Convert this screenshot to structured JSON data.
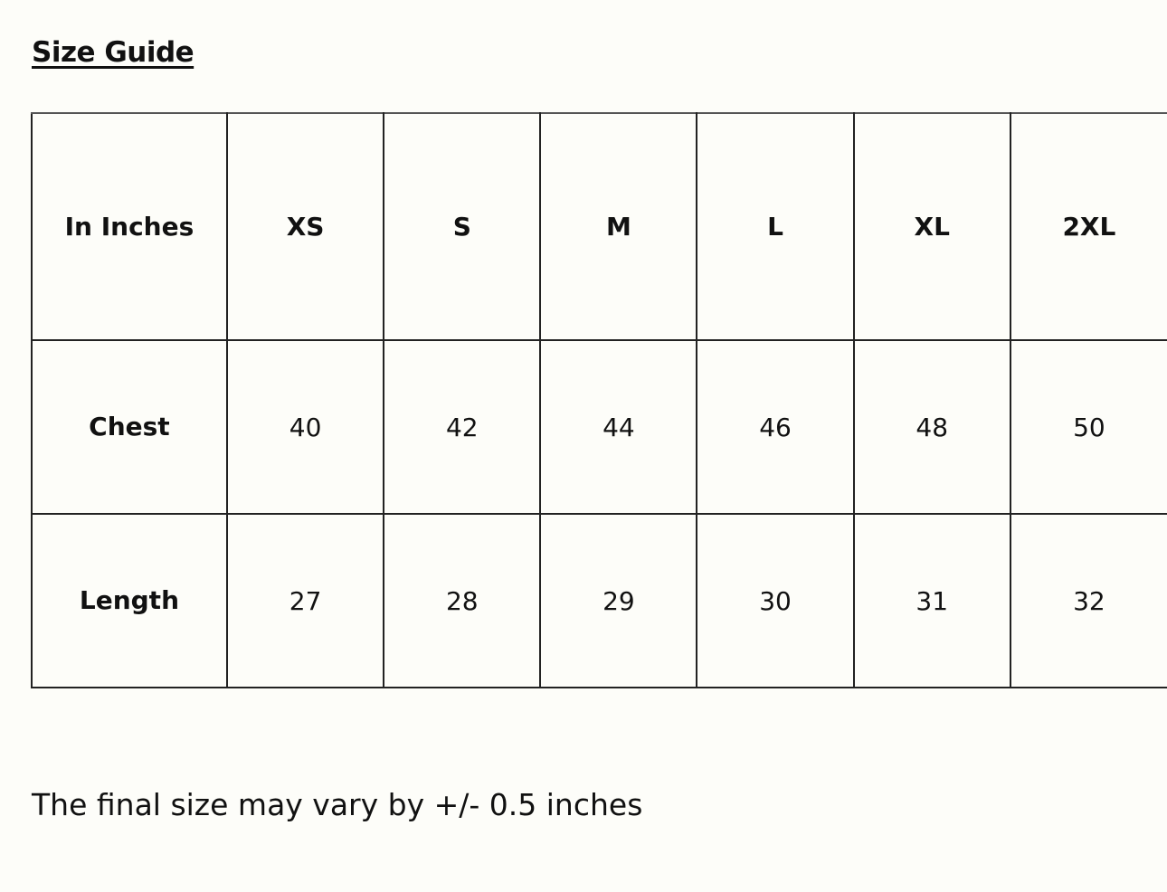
{
  "title": "Size Guide",
  "table": {
    "corner_label": "In Inches",
    "sizes": [
      "XS",
      "S",
      "M",
      "L",
      "XL",
      "2XL"
    ],
    "rows": [
      {
        "label": "Chest",
        "values": [
          "40",
          "42",
          "44",
          "46",
          "48",
          "50"
        ]
      },
      {
        "label": "Length",
        "values": [
          "27",
          "28",
          "29",
          "30",
          "31",
          "32"
        ]
      }
    ]
  },
  "note": "The final size may vary by +/- 0.5 inches"
}
